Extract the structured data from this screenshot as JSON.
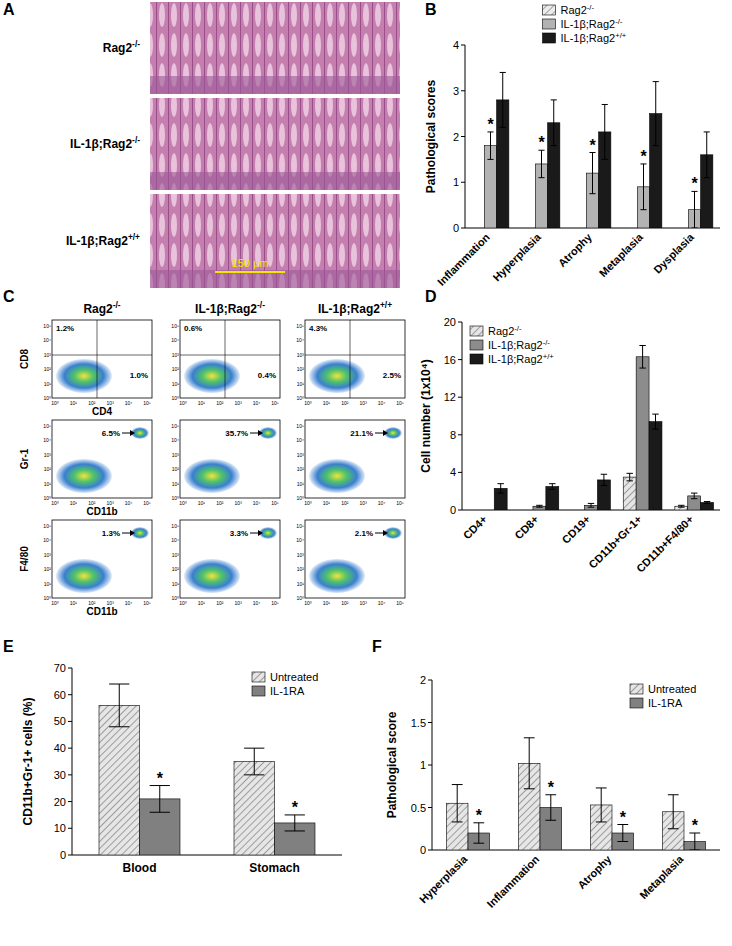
{
  "panel_labels": [
    "A",
    "B",
    "C",
    "D",
    "E",
    "F"
  ],
  "panel_a": {
    "labels": [
      "Rag2-/-",
      "IL-1β;Rag2-/-",
      "IL-1β;Rag2+/+"
    ],
    "scale_bar": "150 μm"
  },
  "panel_c": {
    "columns": [
      "Rag2-/-",
      "IL-1β;Rag2-/-",
      "IL-1β;Rag2+/+"
    ],
    "rows": [
      {
        "y_label": "CD8",
        "x_label": "CD4",
        "percents": [
          [
            "1.2%",
            "1.0%"
          ],
          [
            "0.6%",
            "0.4%"
          ],
          [
            "4.3%",
            "2.5%"
          ]
        ]
      },
      {
        "y_label": "Gr-1",
        "x_label": "CD11b",
        "percents": [
          [
            "6.5%"
          ],
          [
            "35.7%"
          ],
          [
            "21.1%"
          ]
        ]
      },
      {
        "y_label": "F4/80",
        "x_label": "CD11b",
        "percents": [
          [
            "1.3%"
          ],
          [
            "3.3%"
          ],
          [
            "2.1%"
          ]
        ]
      }
    ],
    "axis_ticks": [
      "10⁰",
      "10¹",
      "10²",
      "10³",
      "10⁴",
      "10⁵"
    ]
  },
  "chart_data": [
    {
      "type": "bar",
      "y_label": "Pathological scores",
      "categories": [
        "Inflammation",
        "Hyperplasia",
        "Atrophy",
        "Metaplasia",
        "Dysplasia"
      ],
      "series": [
        {
          "name": "Rag2-/-",
          "color": "#ececec",
          "values": [
            0,
            0,
            0,
            0,
            0
          ]
        },
        {
          "name": "IL-1β;Rag2-/-",
          "color": "#b3b3b3",
          "values": [
            1.8,
            1.4,
            1.2,
            0.9,
            0.4
          ],
          "errors": [
            0.3,
            0.3,
            0.45,
            0.5,
            0.4
          ],
          "annotations": [
            "*",
            "*",
            "*",
            "*",
            "*"
          ]
        },
        {
          "name": "IL-1β;Rag2+/+",
          "color": "#1a1a1a",
          "values": [
            2.8,
            2.3,
            2.1,
            2.5,
            1.6
          ],
          "errors": [
            0.6,
            0.5,
            0.6,
            0.7,
            0.5
          ]
        }
      ],
      "ylim": [
        0,
        4
      ],
      "yticks": [
        0,
        1,
        2,
        3,
        4
      ],
      "legend": "top",
      "grid": false
    },
    {
      "type": "bar",
      "y_label": "Cell number (1x10⁴)",
      "categories": [
        "CD4+",
        "CD8+",
        "CD19+",
        "CD11b+Gr-1+",
        "CD11b+F4/80+"
      ],
      "series": [
        {
          "name": "Rag2-/-",
          "color": "#e6e6e6",
          "values": [
            0,
            0,
            0,
            3.5,
            0.4
          ],
          "errors": [
            null,
            null,
            null,
            0.4,
            0.1
          ]
        },
        {
          "name": "IL-1β;Rag2-/-",
          "color": "#8c8c8c",
          "values": [
            0,
            0.4,
            0.5,
            16.3,
            1.5
          ],
          "errors": [
            null,
            0.1,
            0.2,
            1.2,
            0.3
          ]
        },
        {
          "name": "IL-1β;Rag2+/+",
          "color": "#1a1a1a",
          "values": [
            2.3,
            2.5,
            3.2,
            9.4,
            0.8
          ],
          "errors": [
            0.5,
            0.3,
            0.6,
            0.8,
            0.1
          ]
        }
      ],
      "ylim": [
        0,
        20
      ],
      "yticks": [
        0,
        4,
        8,
        12,
        16,
        20
      ],
      "legend": "top-left",
      "grid": false
    },
    {
      "type": "bar",
      "y_label": "CD11b+Gr-1+ cells (%)",
      "categories": [
        "Blood",
        "Stomach"
      ],
      "series": [
        {
          "name": "Untreated",
          "color": "#e6e6e6",
          "values": [
            56,
            35
          ],
          "errors": [
            8,
            5
          ]
        },
        {
          "name": "IL-1RA",
          "color": "#808080",
          "values": [
            21,
            12
          ],
          "errors": [
            5,
            3
          ],
          "annotations": [
            "*",
            "*"
          ]
        }
      ],
      "ylim": [
        0,
        70
      ],
      "yticks": [
        0,
        10,
        20,
        30,
        40,
        50,
        60,
        70
      ],
      "legend": "top-right",
      "grid": false
    },
    {
      "type": "bar",
      "y_label": "Pathological score",
      "categories": [
        "Hyperplasia",
        "Inflammation",
        "Atrophy",
        "Metaplasia"
      ],
      "series": [
        {
          "name": "Untreated",
          "color": "#e6e6e6",
          "values": [
            0.55,
            1.02,
            0.53,
            0.45
          ],
          "errors": [
            0.22,
            0.3,
            0.2,
            0.2
          ]
        },
        {
          "name": "IL-1RA",
          "color": "#808080",
          "values": [
            0.2,
            0.5,
            0.2,
            0.1
          ],
          "errors": [
            0.12,
            0.15,
            0.1,
            0.1
          ],
          "annotations": [
            "*",
            "*",
            "*",
            "*"
          ]
        }
      ],
      "ylim": [
        0,
        2
      ],
      "yticks": [
        0,
        0.5,
        1,
        1.5,
        2
      ],
      "legend": "top-right",
      "grid": false
    }
  ]
}
